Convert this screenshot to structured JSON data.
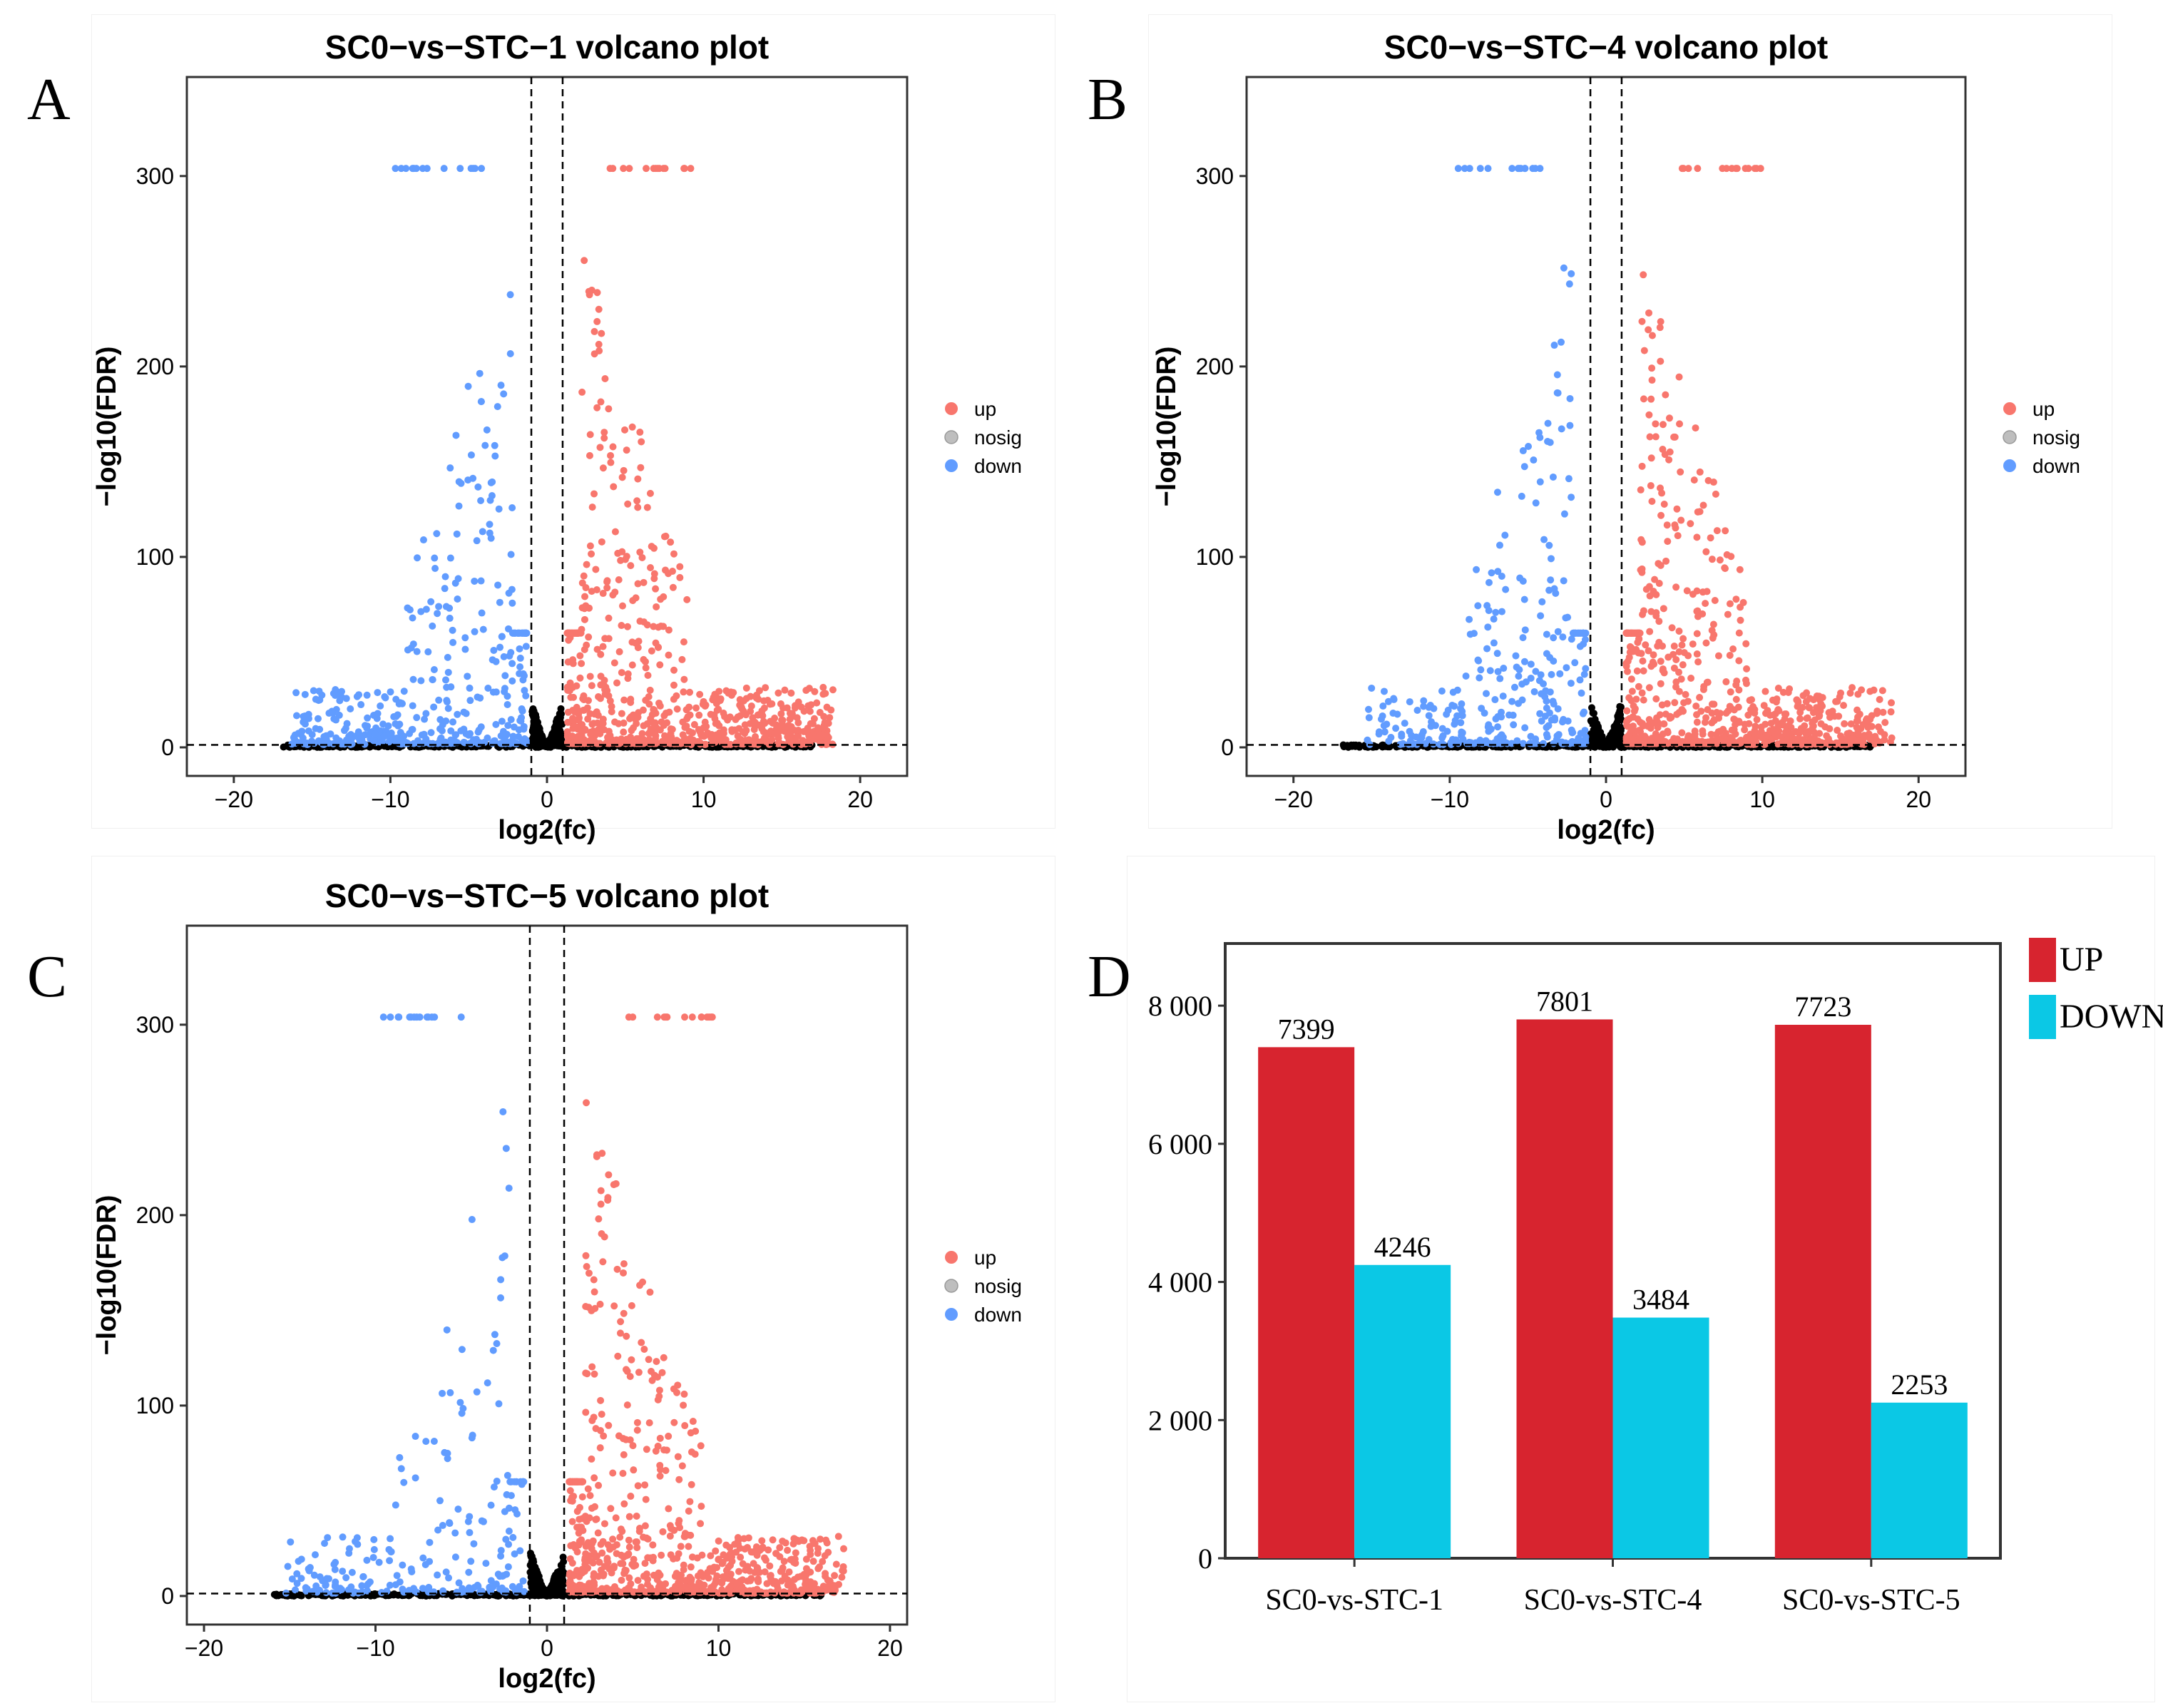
{
  "panels": [
    {
      "letter": "A",
      "chart_data": {
        "type": "scatter",
        "title": "SC0−vs−STC−1 volcano plot",
        "xlabel": "log2(fc)",
        "ylabel": "−log10(FDR)",
        "xlim": [
          -23,
          23
        ],
        "ylim": [
          -15,
          352
        ],
        "xticks": [
          -20,
          -10,
          0,
          10,
          20
        ],
        "yticks": [
          0,
          100,
          200,
          300
        ],
        "thresholds": {
          "fc": [
            -1,
            1
          ],
          "fdr": 1.3
        },
        "legend": [
          "up",
          "nosig",
          "down"
        ],
        "series": [
          {
            "name": "up",
            "color": "#F8766D",
            "count": 7399,
            "x_range": [
              1,
              18
            ],
            "y_max": 304
          },
          {
            "name": "nosig",
            "color": "#000000",
            "x_range": [
              -17,
              17
            ]
          },
          {
            "name": "down",
            "color": "#619CFF",
            "count": 4246,
            "x_range": [
              -16,
              -1
            ],
            "y_max": 304
          }
        ]
      }
    },
    {
      "letter": "B",
      "chart_data": {
        "type": "scatter",
        "title": "SC0−vs−STC−4 volcano plot",
        "xlabel": "log2(fc)",
        "ylabel": "−log10(FDR)",
        "xlim": [
          -23,
          23
        ],
        "ylim": [
          -15,
          352
        ],
        "xticks": [
          -20,
          -10,
          0,
          10,
          20
        ],
        "yticks": [
          0,
          100,
          200,
          300
        ],
        "thresholds": {
          "fc": [
            -1,
            1
          ],
          "fdr": 1.3
        },
        "legend": [
          "up",
          "nosig",
          "down"
        ],
        "series": [
          {
            "name": "up",
            "color": "#F8766D",
            "count": 7801,
            "x_range": [
              1,
              18
            ],
            "y_max": 304
          },
          {
            "name": "nosig",
            "color": "#000000",
            "x_range": [
              -17,
              17
            ]
          },
          {
            "name": "down",
            "color": "#619CFF",
            "count": 3484,
            "x_range": [
              -15,
              -1
            ],
            "y_max": 304
          }
        ]
      }
    },
    {
      "letter": "C",
      "chart_data": {
        "type": "scatter",
        "title": "SC0−vs−STC−5 volcano plot",
        "xlabel": "log2(fc)",
        "ylabel": "−log10(FDR)",
        "xlim": [
          -21,
          21
        ],
        "ylim": [
          -15,
          352
        ],
        "xticks": [
          -20,
          -10,
          0,
          10,
          20
        ],
        "yticks": [
          0,
          100,
          200,
          300
        ],
        "thresholds": {
          "fc": [
            -1,
            1
          ],
          "fdr": 1.3
        },
        "legend": [
          "up",
          "nosig",
          "down"
        ],
        "series": [
          {
            "name": "up",
            "color": "#F8766D",
            "count": 7723,
            "x_range": [
              1,
              17
            ],
            "y_max": 304
          },
          {
            "name": "nosig",
            "color": "#000000",
            "x_range": [
              -16,
              16
            ]
          },
          {
            "name": "down",
            "color": "#619CFF",
            "count": 2253,
            "x_range": [
              -15,
              -1
            ],
            "y_max": 304
          }
        ]
      }
    },
    {
      "letter": "D",
      "chart_data": {
        "type": "bar",
        "categories": [
          "SC0-vs-STC-1",
          "SC0-vs-STC-4",
          "SC0-vs-STC-5"
        ],
        "series": [
          {
            "name": "UP",
            "color": "#D7242F",
            "values": [
              7399,
              7801,
              7723
            ]
          },
          {
            "name": "DOWN",
            "color": "#0BC8E5",
            "values": [
              4246,
              3484,
              2253
            ]
          }
        ],
        "ylim": [
          0,
          8900
        ],
        "yticks": [
          0,
          2000,
          4000,
          6000,
          8000
        ],
        "yticklabels": [
          "0",
          "2 000",
          "4 000",
          "6 000",
          "8 000"
        ],
        "title": "",
        "xlabel": "",
        "ylabel": ""
      }
    }
  ]
}
